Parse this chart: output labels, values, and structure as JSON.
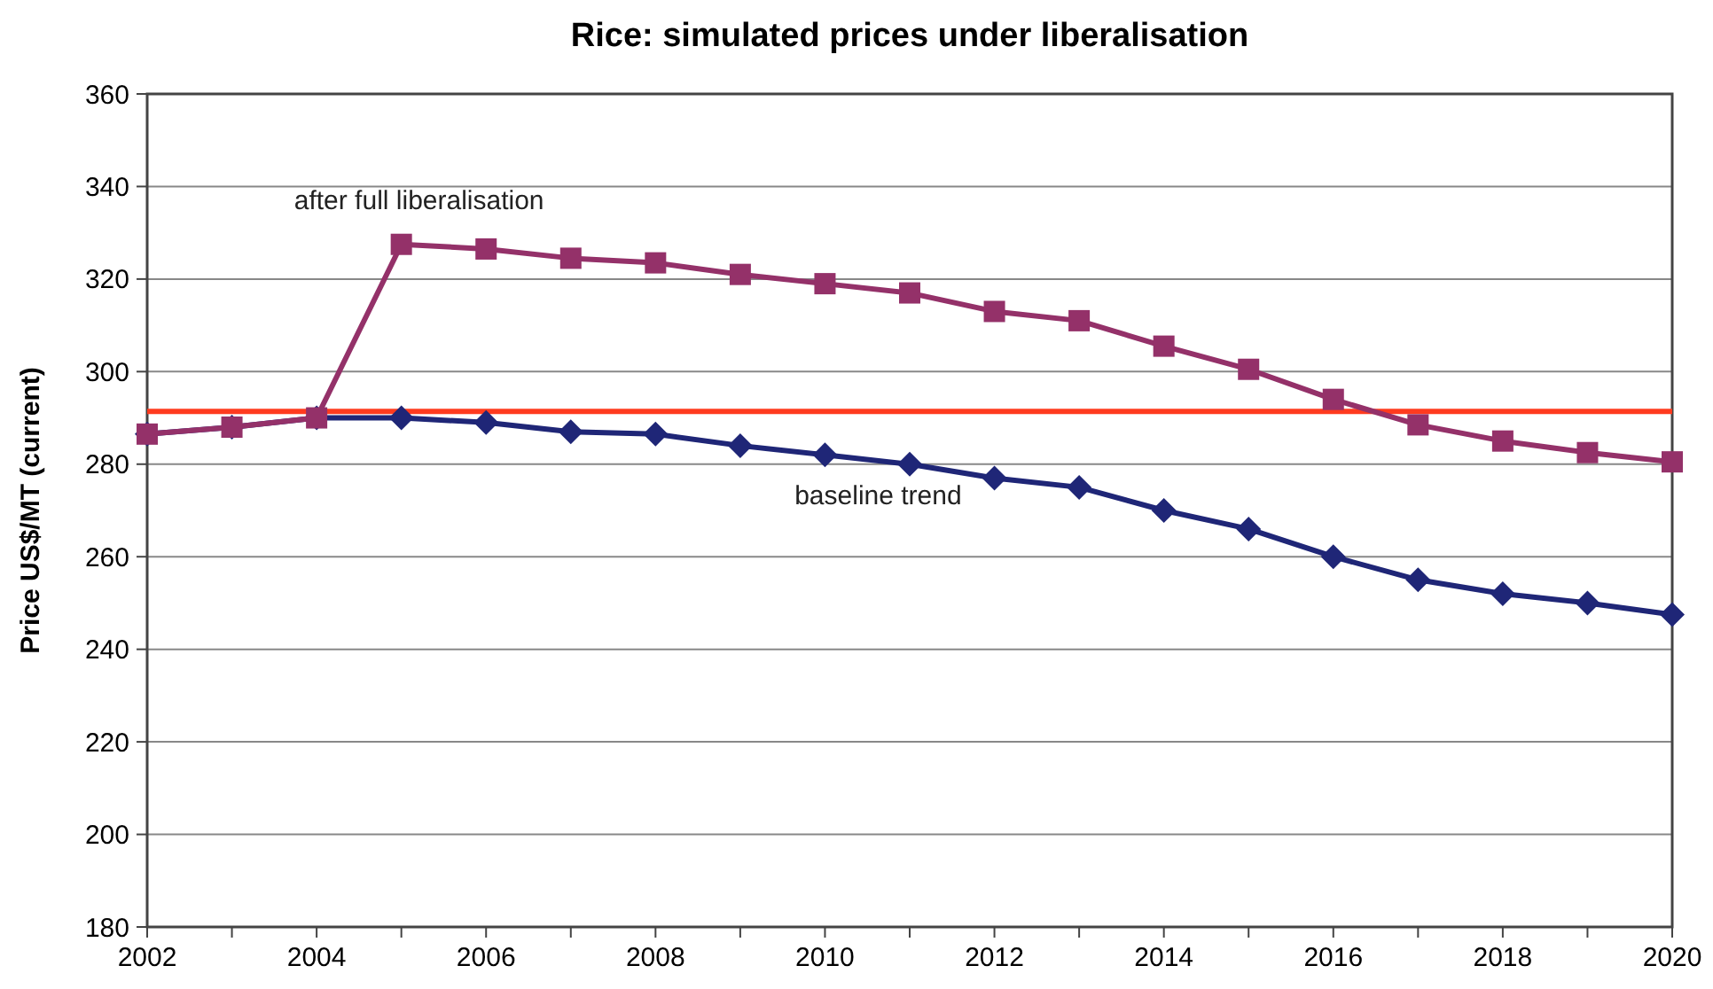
{
  "chart_data": {
    "type": "line",
    "title": "Rice: simulated prices under liberalisation",
    "ylabel": "Price US$/MT (current)",
    "x": [
      2002,
      2003,
      2004,
      2005,
      2006,
      2007,
      2008,
      2009,
      2010,
      2011,
      2012,
      2013,
      2014,
      2015,
      2016,
      2017,
      2018,
      2019,
      2020
    ],
    "series": [
      {
        "name": "after full liberalisation",
        "color": "#943169",
        "marker": "square",
        "values": [
          286.5,
          288,
          290,
          327.5,
          326.5,
          324.5,
          323.5,
          321,
          319,
          317,
          313,
          311,
          305.5,
          300.5,
          294,
          288.5,
          285,
          282.5,
          280.5
        ]
      },
      {
        "name": "baseline trend",
        "color": "#1f2677",
        "marker": "diamond",
        "values": [
          286.5,
          288,
          290,
          290,
          289,
          287,
          286.5,
          284,
          282,
          280,
          277,
          275,
          270,
          266,
          260,
          255,
          252,
          250,
          247.5
        ]
      }
    ],
    "ref_lines": [
      {
        "axis": "y",
        "value": 291.4,
        "color": "#ff3b1f"
      }
    ],
    "xlim": [
      2002,
      2020
    ],
    "xticks": [
      2002,
      2004,
      2006,
      2008,
      2010,
      2012,
      2014,
      2016,
      2018,
      2020
    ],
    "ylim": [
      180,
      360
    ],
    "yticks": [
      180,
      200,
      220,
      240,
      260,
      280,
      300,
      320,
      340,
      360
    ],
    "grid": "y",
    "line_style": "solid"
  }
}
